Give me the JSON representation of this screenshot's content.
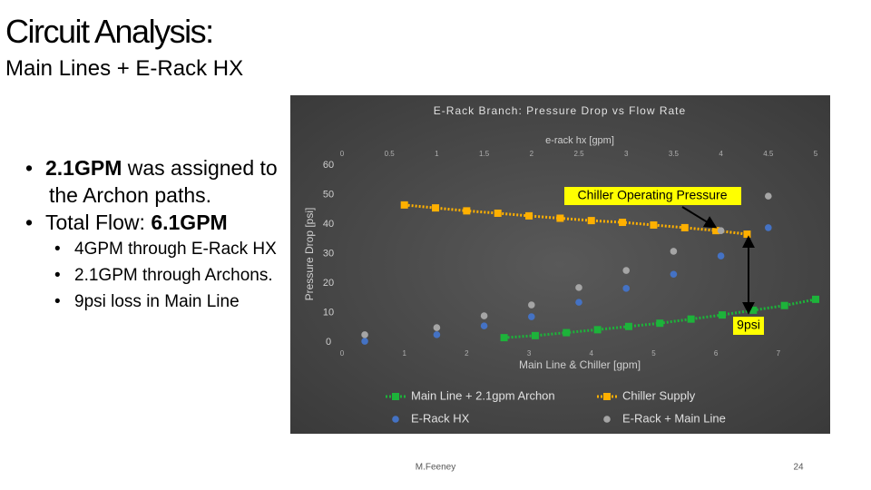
{
  "slide": {
    "title": "Circuit Analysis:",
    "subtitle": "Main Lines + E-Rack HX",
    "bullets": [
      {
        "level": 1,
        "segments": [
          {
            "text": "2.1GPM",
            "bold": true
          },
          {
            "text": " was assigned to the Archon paths.",
            "bold": false
          }
        ]
      },
      {
        "level": 1,
        "segments": [
          {
            "text": "Total Flow: ",
            "bold": false
          },
          {
            "text": "6.1GPM",
            "bold": true
          }
        ]
      },
      {
        "level": 2,
        "segments": [
          {
            "text": "4GPM through E-Rack HX",
            "bold": false
          }
        ]
      },
      {
        "level": 2,
        "segments": [
          {
            "text": "2.1GPM through Archons.",
            "bold": false
          }
        ]
      },
      {
        "level": 2,
        "segments": [
          {
            "text": "9psi loss in Main Line",
            "bold": false
          }
        ]
      }
    ],
    "footer": "M.Feeney",
    "page_number": "24"
  },
  "chart_data": {
    "type": "scatter",
    "title": "E-Rack Branch: Pressure Drop vs Flow Rate",
    "x_label": "Main Line & Chiller [gpm]",
    "x2_label": "e-rack hx [gpm]",
    "y_label": "Pressure Drop [psi]",
    "xlim": [
      0,
      7.6
    ],
    "xticks": [
      0,
      1,
      2,
      3,
      4,
      5,
      6,
      7
    ],
    "x2lim": [
      0,
      5
    ],
    "x2ticks": [
      0,
      0.5,
      1,
      1.5,
      2,
      2.5,
      3,
      3.5,
      4,
      4.5,
      5
    ],
    "ylim": [
      0,
      60
    ],
    "yticks": [
      0,
      10,
      20,
      30,
      40,
      50,
      60
    ],
    "series": [
      {
        "name": "Main Line + 2.1gpm Archon",
        "color": "#1db33a",
        "marker": "square",
        "line": true,
        "x": [
          2.6,
          3.1,
          3.6,
          4.1,
          4.6,
          5.1,
          5.6,
          6.1,
          6.6,
          7.1,
          7.6
        ],
        "values": [
          1.5,
          2.2,
          3.2,
          4.2,
          5.3,
          6.4,
          7.8,
          9.2,
          10.8,
          12.4,
          14.5
        ]
      },
      {
        "name": "Chiller Supply",
        "color": "#ffb000",
        "marker": "square",
        "line": true,
        "x": [
          1.0,
          1.5,
          2.0,
          2.5,
          3.0,
          3.5,
          4.0,
          4.5,
          5.0,
          5.5,
          6.0,
          6.5
        ],
        "values": [
          46.5,
          45.5,
          44.5,
          43.7,
          42.8,
          42.0,
          41.2,
          40.6,
          39.7,
          38.8,
          37.8,
          36.6
        ]
      },
      {
        "name": "E-Rack HX",
        "color": "#4472c4",
        "marker": "circle",
        "line": false,
        "axis_x": "x2",
        "x": [
          0.24,
          1.0,
          1.5,
          2.0,
          2.5,
          3.0,
          3.5,
          4.0,
          4.5
        ],
        "values": [
          0.3,
          2.5,
          5.5,
          8.6,
          13.5,
          18.2,
          23.0,
          29.2,
          38.8
        ]
      },
      {
        "name": "E-Rack + Main Line",
        "color": "#a5a5a5",
        "marker": "circle",
        "line": false,
        "axis_x": "x2",
        "x": [
          0.24,
          1.0,
          1.5,
          2.0,
          2.5,
          3.0,
          3.5,
          4.0,
          4.5
        ],
        "values": [
          2.5,
          4.9,
          8.9,
          12.6,
          18.5,
          24.3,
          30.8,
          37.8,
          49.5
        ]
      }
    ],
    "annotations": [
      "Chiller Operating Pressure",
      "9psi"
    ]
  }
}
